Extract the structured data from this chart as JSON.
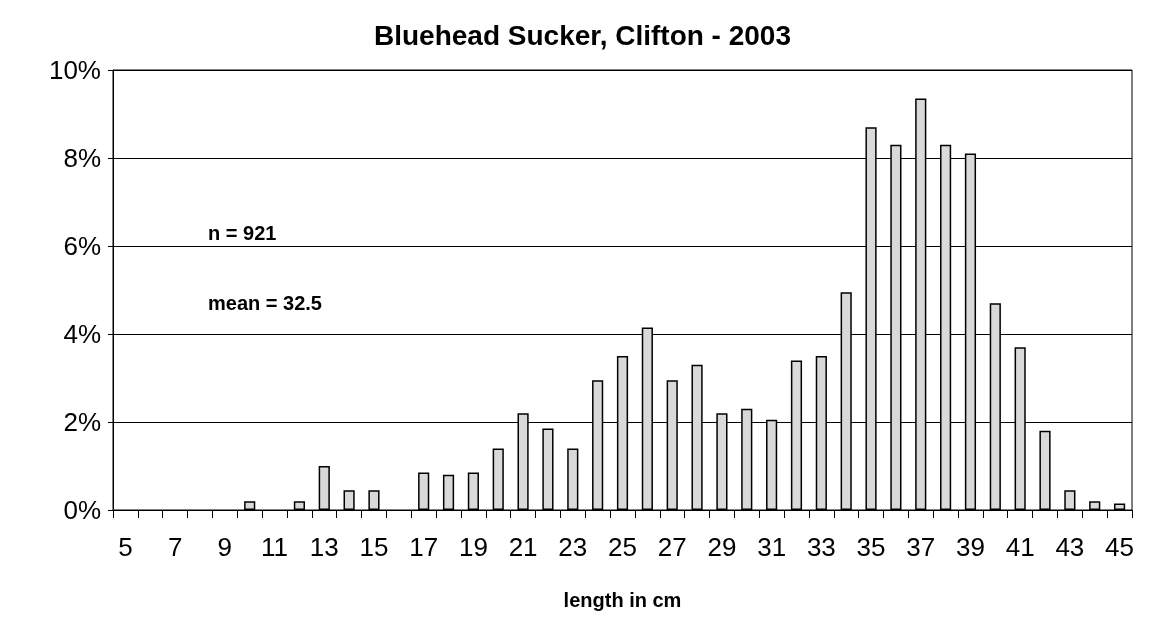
{
  "chart_data": {
    "type": "bar",
    "title": "Bluehead Sucker, Clifton - 2003",
    "xlabel": "length in cm",
    "categories": [
      "5",
      null,
      "7",
      null,
      "9",
      null,
      "11",
      null,
      "13",
      null,
      "15",
      null,
      "17",
      null,
      "19",
      null,
      "21",
      null,
      "23",
      null,
      "25",
      null,
      "27",
      null,
      "29",
      null,
      "31",
      null,
      "33",
      null,
      "35",
      null,
      "37",
      null,
      "39",
      null,
      "41",
      null,
      "43",
      null,
      "45"
    ],
    "values": [
      0,
      0,
      0,
      0,
      0,
      0.2,
      0,
      0.2,
      1.0,
      0.45,
      0.45,
      0,
      0.85,
      0.8,
      0.85,
      1.4,
      2.2,
      1.85,
      1.4,
      2.95,
      3.5,
      4.15,
      2.95,
      3.3,
      2.2,
      2.3,
      2.05,
      3.4,
      3.5,
      4.95,
      8.7,
      8.3,
      9.35,
      8.3,
      8.1,
      4.7,
      3.7,
      1.8,
      0.45,
      0.2,
      0.15
    ],
    "color": "#d9d9d9",
    "ylim": [
      0,
      10
    ],
    "yticks": [
      {
        "value": 0,
        "label": "0%"
      },
      {
        "value": 2,
        "label": "2%"
      },
      {
        "value": 4,
        "label": "4%"
      },
      {
        "value": 6,
        "label": "6%"
      },
      {
        "value": 8,
        "label": "8%"
      },
      {
        "value": 10,
        "label": "10%"
      }
    ],
    "grid": "y",
    "annotations": [
      "n = 921",
      "mean = 32.5"
    ]
  }
}
